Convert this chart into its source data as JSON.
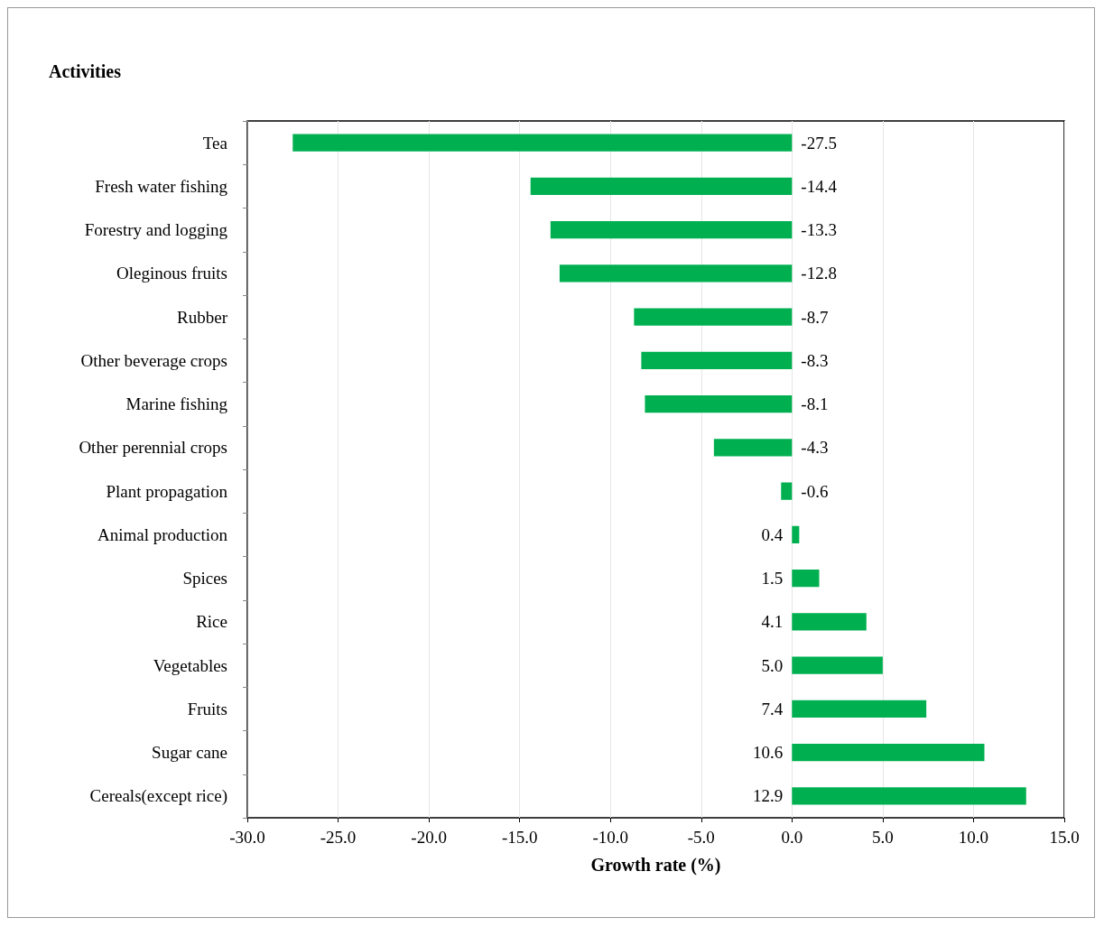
{
  "chart_data": {
    "type": "bar",
    "orientation": "horizontal",
    "ylabel": "Activities",
    "xlabel": "Growth rate (%)",
    "categories": [
      "Tea",
      "Fresh water fishing",
      "Forestry and logging",
      "Oleginous fruits",
      "Rubber",
      "Other beverage crops",
      "Marine fishing",
      "Other perennial crops",
      "Plant propagation",
      "Animal production",
      "Spices",
      "Rice",
      "Vegetables",
      "Fruits",
      "Sugar cane",
      "Cereals(except rice)"
    ],
    "values": [
      -27.5,
      -14.4,
      -13.3,
      -12.8,
      -8.7,
      -8.3,
      -8.1,
      -4.3,
      -0.6,
      0.4,
      1.5,
      4.1,
      5.0,
      7.4,
      10.6,
      12.9
    ],
    "value_labels": [
      "-27.5",
      "-14.4",
      "-13.3",
      "-12.8",
      "-8.7",
      "-8.3",
      "-8.1",
      "-4.3",
      "-0.6",
      "0.4",
      "1.5",
      "4.1",
      "5.0",
      "7.4",
      "10.6",
      "12.9"
    ],
    "color": "#00b050",
    "xlim": [
      -30,
      15
    ],
    "xticks": [
      {
        "value": -30,
        "label": "-30.0"
      },
      {
        "value": -25,
        "label": "-25.0"
      },
      {
        "value": -20,
        "label": "-20.0"
      },
      {
        "value": -15,
        "label": "-15.0"
      },
      {
        "value": -10,
        "label": "-10.0"
      },
      {
        "value": -5,
        "label": "-5.0"
      },
      {
        "value": 0,
        "label": "0.0"
      },
      {
        "value": 5,
        "label": "5.0"
      },
      {
        "value": 10,
        "label": "10.0"
      },
      {
        "value": 15,
        "label": "15.0"
      }
    ],
    "grid": "x"
  }
}
